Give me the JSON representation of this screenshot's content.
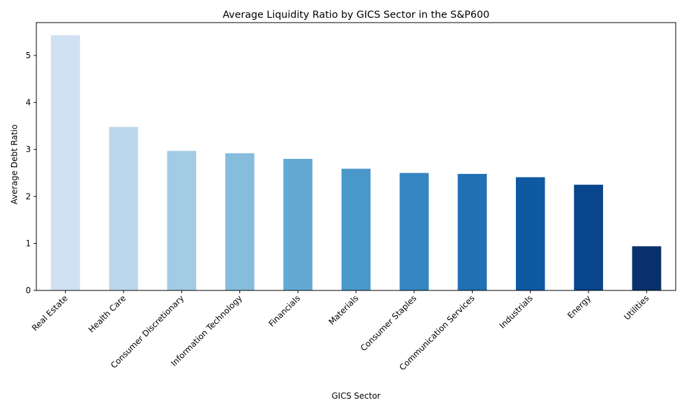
{
  "chart_data": {
    "type": "bar",
    "title": "Average Liquidity Ratio by GICS Sector in the S&P600",
    "xlabel": "GICS Sector",
    "ylabel": "Average Debt Ratio",
    "categories": [
      "Real Estate",
      "Health Care",
      "Consumer Discretionary",
      "Information Technology",
      "Financials",
      "Materials",
      "Consumer Staples",
      "Communication Services",
      "Industrials",
      "Energy",
      "Utilities"
    ],
    "values": [
      5.43,
      3.48,
      2.97,
      2.92,
      2.8,
      2.59,
      2.5,
      2.48,
      2.41,
      2.25,
      0.94
    ],
    "colors": [
      "#cfe1f2",
      "#bcd7eb",
      "#a3cbe3",
      "#86bcdc",
      "#64a9d3",
      "#4a98c9",
      "#3585c0",
      "#216fb5",
      "#0f59a3",
      "#08458a",
      "#08306b"
    ],
    "ylim": [
      0,
      5.7
    ],
    "yticks": [
      "0",
      "1",
      "2",
      "3",
      "4",
      "5"
    ],
    "grid": false,
    "legend": "none"
  }
}
